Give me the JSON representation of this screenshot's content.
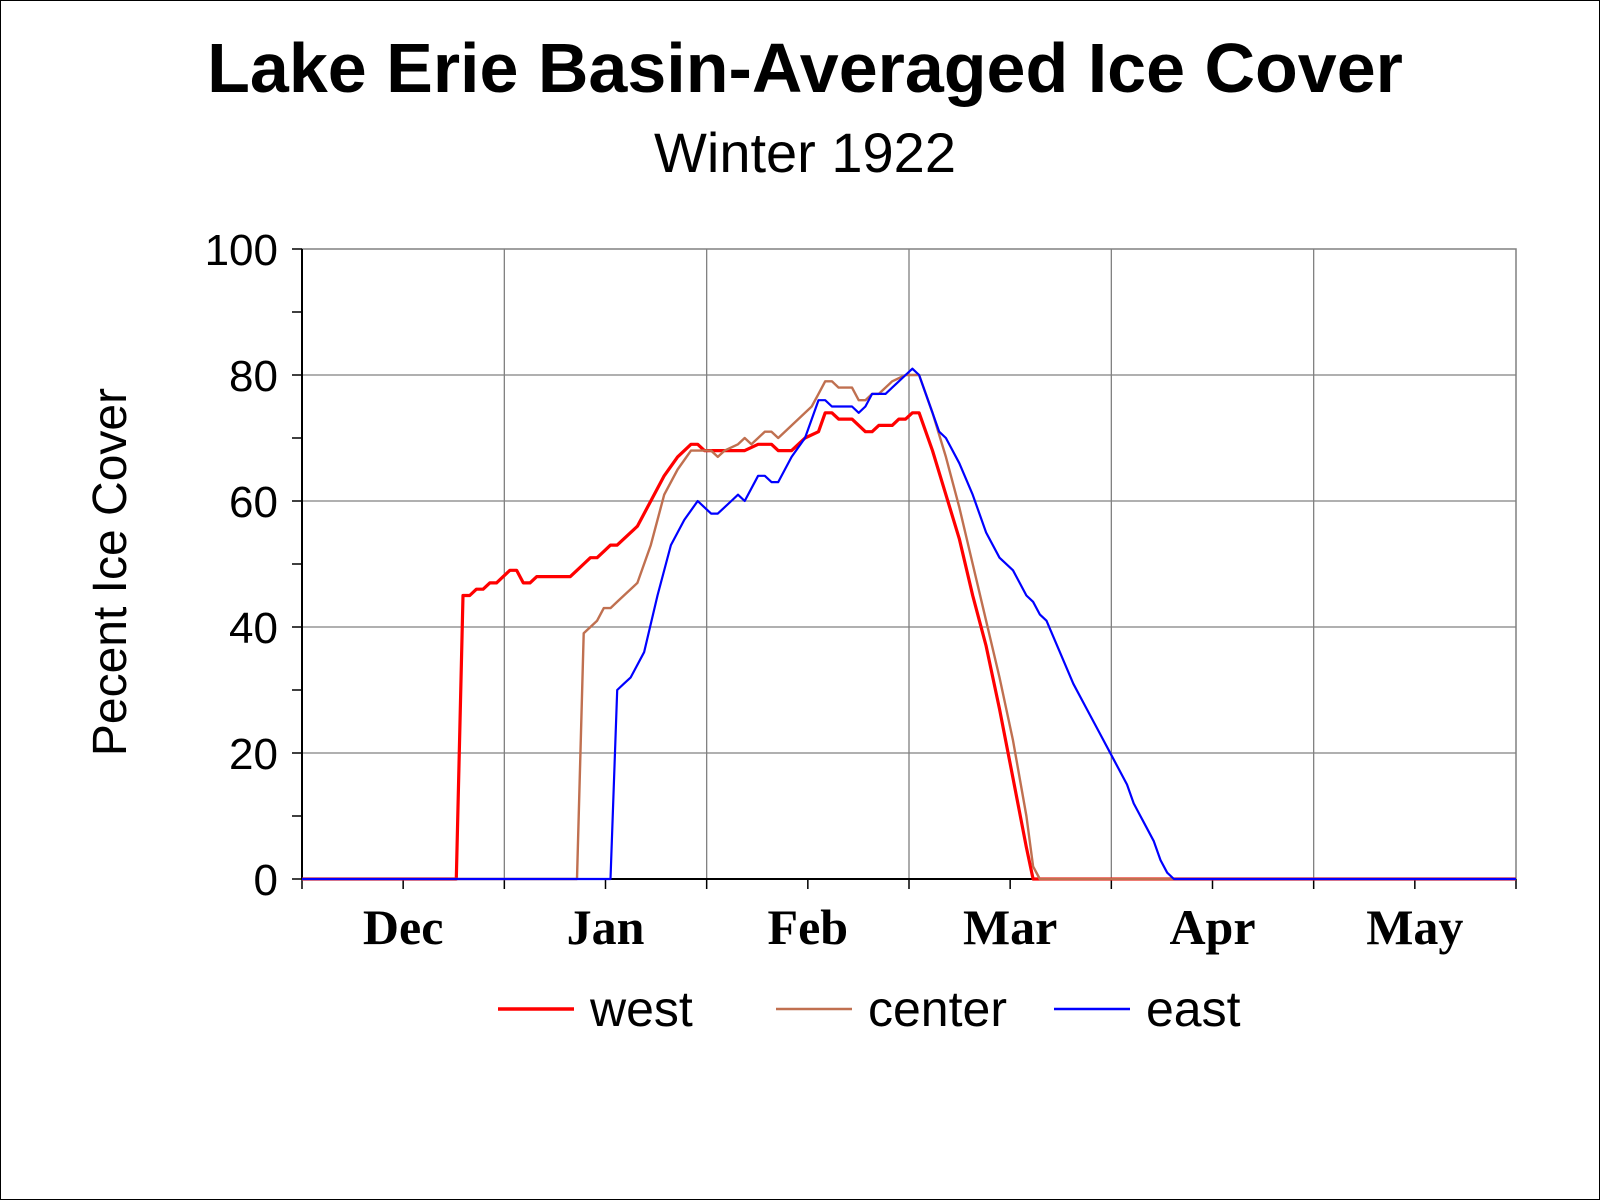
{
  "chart_data": {
    "type": "line",
    "title": "Lake Erie Basin-Averaged Ice Cover",
    "subtitle": "Winter 1922",
    "xlabel": "",
    "ylabel": "Pecent Ice Cover",
    "ylim": [
      0,
      100
    ],
    "y_ticks": [
      0,
      20,
      40,
      60,
      80,
      100
    ],
    "xlim_days": [
      0,
      181
    ],
    "x_tick_labels": [
      "Dec",
      "Jan",
      "Feb",
      "Mar",
      "Apr",
      "May"
    ],
    "grid": true,
    "legend_position": "bottom",
    "series": [
      {
        "name": "west",
        "color": "#ff0000",
        "points": [
          [
            0,
            0
          ],
          [
            23,
            0
          ],
          [
            24,
            45
          ],
          [
            25,
            45
          ],
          [
            26,
            46
          ],
          [
            27,
            46
          ],
          [
            28,
            47
          ],
          [
            29,
            47
          ],
          [
            30,
            48
          ],
          [
            31,
            49
          ],
          [
            32,
            49
          ],
          [
            33,
            47
          ],
          [
            34,
            47
          ],
          [
            35,
            48
          ],
          [
            37,
            48
          ],
          [
            40,
            48
          ],
          [
            41,
            49
          ],
          [
            42,
            50
          ],
          [
            43,
            51
          ],
          [
            44,
            51
          ],
          [
            45,
            52
          ],
          [
            46,
            53
          ],
          [
            47,
            53
          ],
          [
            48,
            54
          ],
          [
            50,
            56
          ],
          [
            52,
            60
          ],
          [
            54,
            64
          ],
          [
            56,
            67
          ],
          [
            58,
            69
          ],
          [
            59,
            69
          ],
          [
            60,
            68
          ],
          [
            62,
            68
          ],
          [
            64,
            68
          ],
          [
            66,
            68
          ],
          [
            68,
            69
          ],
          [
            70,
            69
          ],
          [
            71,
            68
          ],
          [
            73,
            68
          ],
          [
            75,
            70
          ],
          [
            77,
            71
          ],
          [
            78,
            74
          ],
          [
            79,
            74
          ],
          [
            80,
            73
          ],
          [
            82,
            73
          ],
          [
            84,
            71
          ],
          [
            85,
            71
          ],
          [
            86,
            72
          ],
          [
            88,
            72
          ],
          [
            89,
            73
          ],
          [
            90,
            73
          ],
          [
            91,
            74
          ],
          [
            92,
            74
          ],
          [
            94,
            68
          ],
          [
            96,
            61
          ],
          [
            98,
            54
          ],
          [
            100,
            45
          ],
          [
            102,
            37
          ],
          [
            104,
            27
          ],
          [
            106,
            16
          ],
          [
            108,
            5
          ],
          [
            109,
            0
          ],
          [
            181,
            0
          ]
        ]
      },
      {
        "name": "center",
        "color": "#c07050",
        "points": [
          [
            0,
            0
          ],
          [
            41,
            0
          ],
          [
            42,
            39
          ],
          [
            43,
            40
          ],
          [
            44,
            41
          ],
          [
            45,
            43
          ],
          [
            46,
            43
          ],
          [
            47,
            44
          ],
          [
            48,
            45
          ],
          [
            50,
            47
          ],
          [
            52,
            53
          ],
          [
            54,
            61
          ],
          [
            56,
            65
          ],
          [
            58,
            68
          ],
          [
            59,
            68
          ],
          [
            60,
            68
          ],
          [
            61,
            68
          ],
          [
            62,
            67
          ],
          [
            63,
            68
          ],
          [
            65,
            69
          ],
          [
            66,
            70
          ],
          [
            67,
            69
          ],
          [
            68,
            70
          ],
          [
            69,
            71
          ],
          [
            70,
            71
          ],
          [
            71,
            70
          ],
          [
            72,
            71
          ],
          [
            74,
            73
          ],
          [
            76,
            75
          ],
          [
            77,
            77
          ],
          [
            78,
            79
          ],
          [
            79,
            79
          ],
          [
            80,
            78
          ],
          [
            81,
            78
          ],
          [
            82,
            78
          ],
          [
            83,
            76
          ],
          [
            84,
            76
          ],
          [
            85,
            77
          ],
          [
            86,
            77
          ],
          [
            88,
            79
          ],
          [
            90,
            80
          ],
          [
            91,
            80
          ],
          [
            92,
            80
          ],
          [
            94,
            74
          ],
          [
            96,
            67
          ],
          [
            98,
            59
          ],
          [
            100,
            50
          ],
          [
            102,
            41
          ],
          [
            104,
            32
          ],
          [
            106,
            22
          ],
          [
            108,
            10
          ],
          [
            109,
            2
          ],
          [
            110,
            0
          ],
          [
            181,
            0
          ]
        ]
      },
      {
        "name": "east",
        "color": "#0000ff",
        "points": [
          [
            0,
            0
          ],
          [
            46,
            0
          ],
          [
            47,
            30
          ],
          [
            48,
            31
          ],
          [
            49,
            32
          ],
          [
            51,
            36
          ],
          [
            53,
            45
          ],
          [
            55,
            53
          ],
          [
            57,
            57
          ],
          [
            59,
            60
          ],
          [
            60,
            59
          ],
          [
            61,
            58
          ],
          [
            62,
            58
          ],
          [
            64,
            60
          ],
          [
            65,
            61
          ],
          [
            66,
            60
          ],
          [
            68,
            64
          ],
          [
            69,
            64
          ],
          [
            70,
            63
          ],
          [
            71,
            63
          ],
          [
            73,
            67
          ],
          [
            75,
            70
          ],
          [
            77,
            76
          ],
          [
            78,
            76
          ],
          [
            79,
            75
          ],
          [
            80,
            75
          ],
          [
            81,
            75
          ],
          [
            82,
            75
          ],
          [
            83,
            74
          ],
          [
            84,
            75
          ],
          [
            85,
            77
          ],
          [
            86,
            77
          ],
          [
            87,
            77
          ],
          [
            88,
            78
          ],
          [
            90,
            80
          ],
          [
            91,
            81
          ],
          [
            92,
            80
          ],
          [
            93,
            77
          ],
          [
            94,
            74
          ],
          [
            95,
            71
          ],
          [
            96,
            70
          ],
          [
            98,
            66
          ],
          [
            100,
            61
          ],
          [
            102,
            55
          ],
          [
            104,
            51
          ],
          [
            106,
            49
          ],
          [
            108,
            45
          ],
          [
            109,
            44
          ],
          [
            110,
            42
          ],
          [
            111,
            41
          ],
          [
            113,
            36
          ],
          [
            115,
            31
          ],
          [
            117,
            27
          ],
          [
            119,
            23
          ],
          [
            121,
            19
          ],
          [
            123,
            15
          ],
          [
            124,
            12
          ],
          [
            125,
            10
          ],
          [
            127,
            6
          ],
          [
            128,
            3
          ],
          [
            129,
            1
          ],
          [
            130,
            0
          ],
          [
            181,
            0
          ]
        ]
      }
    ]
  }
}
